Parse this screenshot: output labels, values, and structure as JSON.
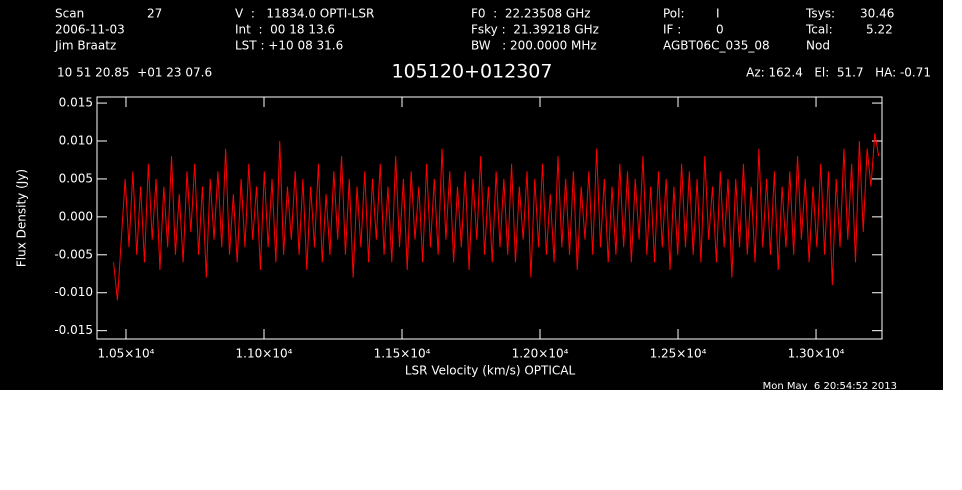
{
  "chart_data": {
    "type": "line",
    "title": "105120+012307",
    "header": [
      "Scan",
      "27",
      "V  :   11834.0 OPTI-LSR",
      "F0  :  22.23508 GHz",
      "Pol:",
      "I",
      "Tsys:",
      "30.46",
      "2006-11-03",
      "Int  :  00 18 13.6",
      "Fsky :  21.39218 GHz",
      "IF :",
      "0",
      "Tcal:",
      "5.22",
      "Jim Braatz",
      "LST : +10 08 31.6",
      "BW   : 200.0000 MHz",
      "AGBT06C_035_08",
      "Nod",
      "10 51 20.85  +01 23 07.6",
      "Az: 162.4   El:  51.7   HA: -0.71"
    ],
    "footer": "Mon May  6 20:54:52 2013",
    "xlabel": "LSR Velocity (km/s) OPTICAL",
    "ylabel": "Flux Density (Jy)",
    "color": "#ff0000",
    "xlim": [
      10395,
      13239
    ],
    "ylim": [
      -0.0161,
      0.0158
    ],
    "xticks": [
      {
        "value": 10500,
        "label": "1.05×10⁴"
      },
      {
        "value": 11000,
        "label": "1.10×10⁴"
      },
      {
        "value": 11500,
        "label": "1.15×10⁴"
      },
      {
        "value": 12000,
        "label": "1.20×10⁴"
      },
      {
        "value": 12500,
        "label": "1.25×10⁴"
      },
      {
        "value": 13000,
        "label": "1.30×10⁴"
      }
    ],
    "yticks": [
      0.015,
      {
        "value": 0.01,
        "label": "0.010"
      },
      0.005,
      {
        "value": 0,
        "label": "0.000"
      },
      -0.005,
      {
        "value": -0.01,
        "label": "-0.010"
      },
      -0.015
    ],
    "x": [
      10455,
      10469,
      10483,
      10497,
      10511,
      10525,
      10539,
      10553,
      10567,
      10581,
      10595,
      10609,
      10623,
      10637,
      10651,
      10665,
      10679,
      10693,
      10707,
      10721,
      10735,
      10749,
      10763,
      10777,
      10791,
      10805,
      10819,
      10833,
      10847,
      10861,
      10875,
      10889,
      10903,
      10917,
      10931,
      10945,
      10959,
      10973,
      10987,
      11001,
      11015,
      11029,
      11043,
      11057,
      11071,
      11085,
      11099,
      11113,
      11127,
      11141,
      11155,
      11169,
      11183,
      11197,
      11211,
      11225,
      11239,
      11253,
      11267,
      11281,
      11295,
      11309,
      11323,
      11337,
      11351,
      11365,
      11379,
      11393,
      11407,
      11421,
      11435,
      11449,
      11463,
      11477,
      11491,
      11505,
      11519,
      11533,
      11547,
      11561,
      11575,
      11589,
      11603,
      11617,
      11631,
      11645,
      11659,
      11673,
      11687,
      11701,
      11715,
      11729,
      11743,
      11757,
      11771,
      11785,
      11799,
      11813,
      11827,
      11841,
      11855,
      11869,
      11883,
      11897,
      11911,
      11925,
      11939,
      11953,
      11967,
      11981,
      11995,
      12009,
      12023,
      12037,
      12051,
      12065,
      12079,
      12093,
      12107,
      12121,
      12135,
      12149,
      12163,
      12177,
      12191,
      12205,
      12219,
      12233,
      12247,
      12261,
      12275,
      12289,
      12303,
      12317,
      12331,
      12345,
      12359,
      12373,
      12387,
      12401,
      12415,
      12429,
      12443,
      12457,
      12471,
      12485,
      12499,
      12513,
      12527,
      12541,
      12555,
      12569,
      12583,
      12597,
      12611,
      12625,
      12639,
      12653,
      12667,
      12681,
      12695,
      12709,
      12723,
      12737,
      12751,
      12765,
      12779,
      12793,
      12807,
      12821,
      12835,
      12849,
      12863,
      12877,
      12891,
      12905,
      12919,
      12933,
      12947,
      12961,
      12975,
      12989,
      13003,
      13017,
      13031,
      13045,
      13059,
      13073,
      13087,
      13101,
      13115,
      13129,
      13143,
      13157,
      13171,
      13185,
      13199,
      13213,
      13227
    ],
    "values": [
      -0.006,
      -0.011,
      -0.003,
      0.005,
      -0.004,
      0.006,
      -0.005,
      0.004,
      -0.006,
      0.007,
      -0.003,
      0.005,
      -0.007,
      0.004,
      -0.004,
      0.008,
      -0.005,
      0.003,
      -0.006,
      0.006,
      -0.002,
      0.007,
      -0.005,
      0.004,
      -0.008,
      0.005,
      -0.003,
      0.006,
      -0.004,
      0.009,
      -0.005,
      0.003,
      -0.006,
      0.005,
      -0.004,
      0.007,
      -0.003,
      0.004,
      -0.007,
      0.006,
      -0.004,
      0.005,
      -0.006,
      0.01,
      -0.005,
      0.004,
      -0.003,
      0.006,
      -0.005,
      0.005,
      -0.007,
      0.004,
      -0.004,
      0.007,
      -0.006,
      0.003,
      -0.005,
      0.006,
      -0.003,
      0.008,
      -0.005,
      0.005,
      -0.008,
      0.004,
      -0.004,
      0.006,
      -0.006,
      0.005,
      -0.003,
      0.007,
      -0.005,
      0.004,
      -0.006,
      0.008,
      -0.004,
      0.005,
      -0.007,
      0.006,
      -0.003,
      0.004,
      -0.006,
      0.007,
      -0.004,
      0.005,
      -0.005,
      0.009,
      -0.003,
      0.006,
      -0.006,
      0.004,
      -0.004,
      0.006,
      -0.007,
      0.005,
      -0.003,
      0.008,
      -0.005,
      0.004,
      -0.006,
      0.006,
      -0.004,
      0.005,
      -0.005,
      0.007,
      -0.006,
      0.004,
      -0.003,
      0.006,
      -0.008,
      0.005,
      -0.004,
      0.007,
      -0.005,
      0.003,
      -0.006,
      0.008,
      -0.004,
      0.005,
      -0.005,
      0.006,
      -0.007,
      0.004,
      -0.003,
      0.006,
      -0.005,
      0.009,
      -0.004,
      0.005,
      -0.006,
      0.004,
      -0.005,
      0.007,
      -0.004,
      0.006,
      -0.006,
      0.005,
      -0.003,
      0.008,
      -0.005,
      0.004,
      -0.006,
      0.006,
      -0.004,
      0.005,
      -0.007,
      0.004,
      -0.005,
      0.007,
      -0.004,
      0.006,
      -0.005,
      0.005,
      -0.006,
      0.008,
      -0.003,
      0.004,
      -0.006,
      0.006,
      -0.004,
      0.005,
      -0.008,
      0.005,
      -0.004,
      0.007,
      -0.005,
      0.004,
      -0.006,
      0.009,
      -0.004,
      0.005,
      -0.005,
      0.006,
      -0.007,
      0.004,
      -0.004,
      0.006,
      -0.005,
      0.008,
      -0.003,
      0.005,
      -0.006,
      0.004,
      -0.004,
      0.007,
      -0.005,
      0.006,
      -0.009,
      0.005,
      -0.004,
      0.009,
      -0.003,
      0.007,
      -0.006,
      0.01,
      -0.002,
      0.009,
      0.004,
      0.011,
      0.008
    ]
  }
}
